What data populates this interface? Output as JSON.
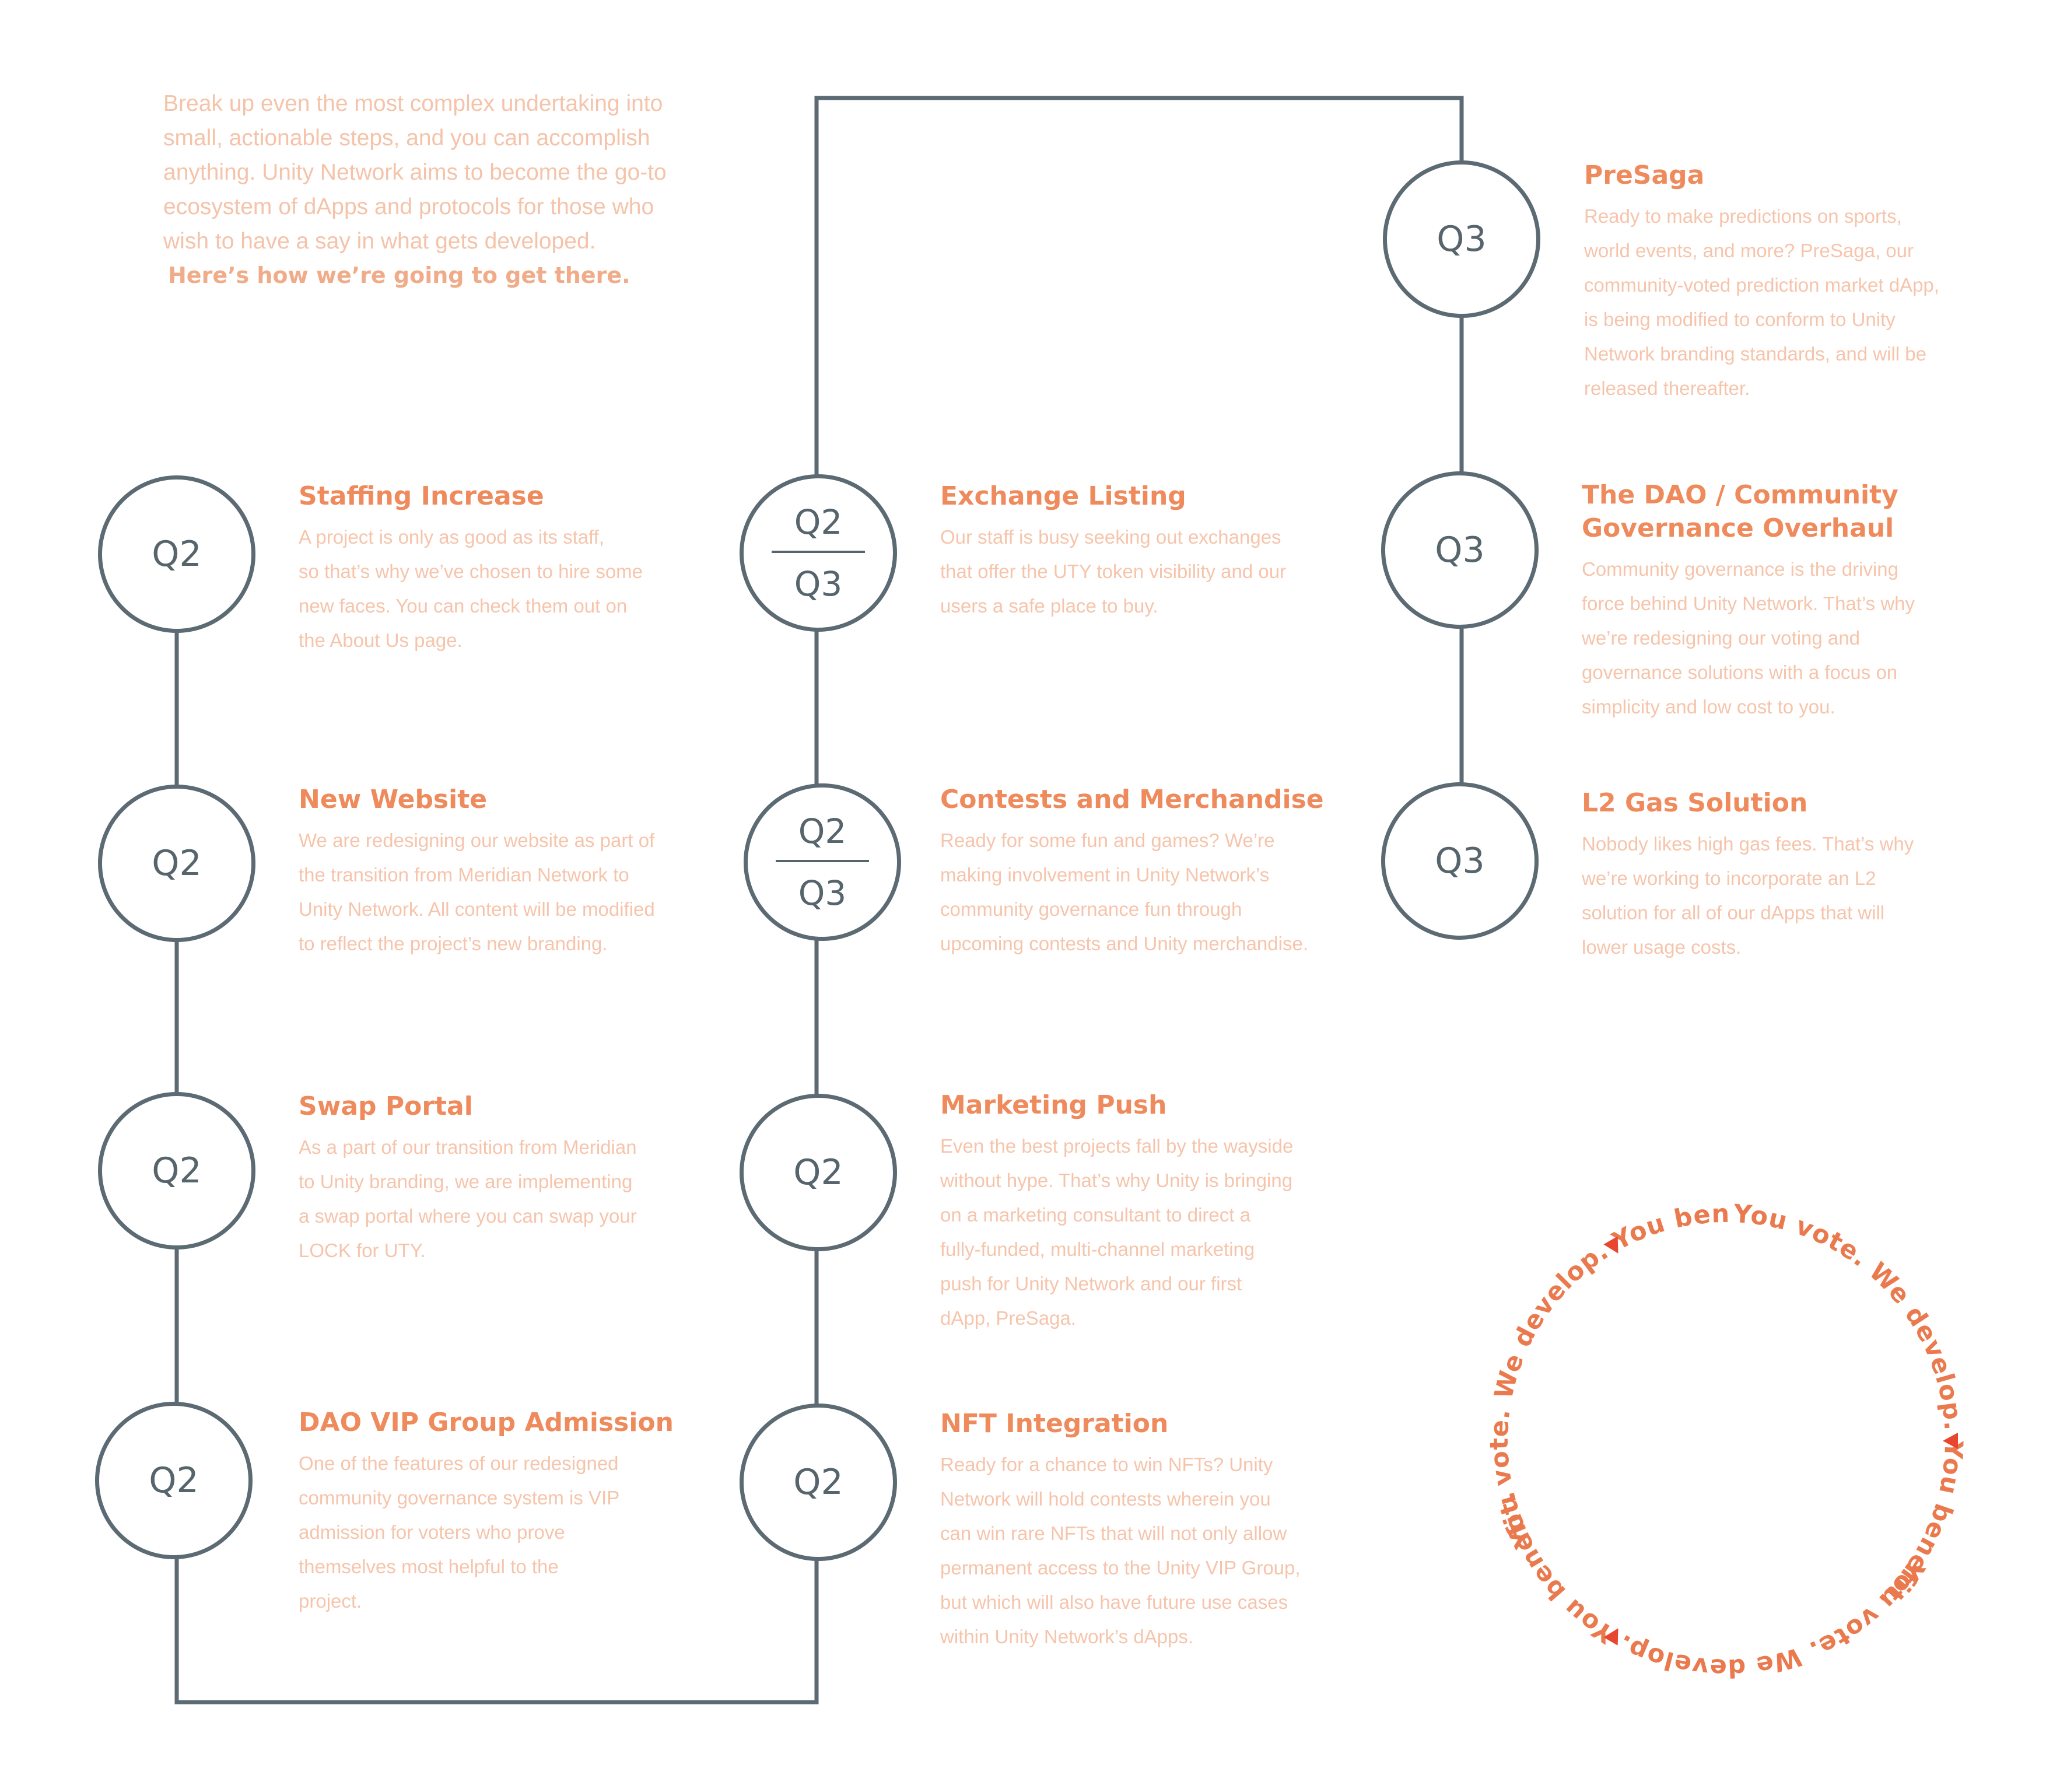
{
  "intro": {
    "body": "Break up even the most complex undertaking into small, actionable steps, and you can accomplish anything. Unity Network aims to become the go-to ecosystem of dApps and protocols for those who wish to have a say in what gets developed.",
    "lead": "Here’s how we’re going to get there."
  },
  "roadmap": {
    "column_1": [
      {
        "quarter": "Q2",
        "title": "Staffing Increase",
        "text": "A project is only as good as its staff,\nso that’s why we’ve chosen to hire some\nnew faces. You can check them out on\nthe About Us page."
      },
      {
        "quarter": "Q2",
        "title": "New Website",
        "text": "We are redesigning our website as part of\nthe transition from Meridian Network to\nUnity Network. All content will be modified\nto reflect the project’s new branding."
      },
      {
        "quarter": "Q2",
        "title": "Swap Portal",
        "text": "As a part of our transition from Meridian\nto Unity branding, we are implementing\na swap portal where you can swap your\nLOCK for UTY."
      },
      {
        "quarter": "Q2",
        "title": "DAO VIP Group Admission",
        "text": "One of the features of our redesigned\ncommunity governance system is VIP\nadmission for voters who prove\nthemselves most helpful to the\nproject."
      }
    ],
    "column_2": [
      {
        "quarter_top": "Q2",
        "quarter_bottom": "Q3",
        "title": "Exchange Listing",
        "text": "Our staff is busy seeking out exchanges\nthat offer the UTY token visibility and our\nusers a safe place to buy."
      },
      {
        "quarter_top": "Q2",
        "quarter_bottom": "Q3",
        "title": "Contests and Merchandise",
        "text": "Ready for some fun and games? We’re\nmaking involvement in Unity Network’s\ncommunity governance fun through\nupcoming contests and Unity merchandise."
      },
      {
        "quarter": "Q2",
        "title": "Marketing Push",
        "text": "Even the best projects fall by the wayside\nwithout hype. That’s why Unity is bringing\non a marketing consultant to direct a\nfully-funded, multi-channel marketing\npush for Unity Network and our first\ndApp, PreSaga."
      },
      {
        "quarter": "Q2",
        "title": "NFT Integration",
        "text": "Ready for a chance to win NFTs? Unity\nNetwork will hold contests wherein you\ncan win rare NFTs that will not only allow\npermanent access to the Unity VIP Group,\nbut which will also have future use cases\nwithin Unity Network’s dApps."
      }
    ],
    "column_3": [
      {
        "quarter": "Q3",
        "title": "PreSaga",
        "text": "Ready to make predictions on sports,\nworld events, and more? PreSaga, our\ncommunity-voted prediction market dApp,\nis being modified to conform to Unity\nNetwork branding standards, and will be\nreleased thereafter."
      },
      {
        "quarter": "Q3",
        "title": "The DAO / Community\nGovernance Overhaul",
        "text": "Community governance is the driving\nforce behind Unity Network. That’s why\nwe’re redesigning our voting and\ngovernance solutions with a focus on\nsimplicity and low cost to you."
      },
      {
        "quarter": "Q3",
        "title": "L2 Gas Solution",
        "text": "Nobody likes high gas fees. That’s why\nwe’re working to incorporate an L2\nsolution for all of our dApps that will\nlower usage costs."
      }
    ]
  },
  "ring": {
    "phrase_1": "You vote. We develop. You benefit.",
    "phrase_2": "You vote. We develop. You benefit.",
    "phrase_3": "You vote. We develop. You benefit."
  },
  "colors": {
    "line": "#5b6a73",
    "title": "#ee8a5b",
    "body": "#f6c4ab",
    "ring_text": "#ea7a4e",
    "arrow": "#e9462f"
  },
  "icons": [
    "triangle-arrow-icon"
  ]
}
